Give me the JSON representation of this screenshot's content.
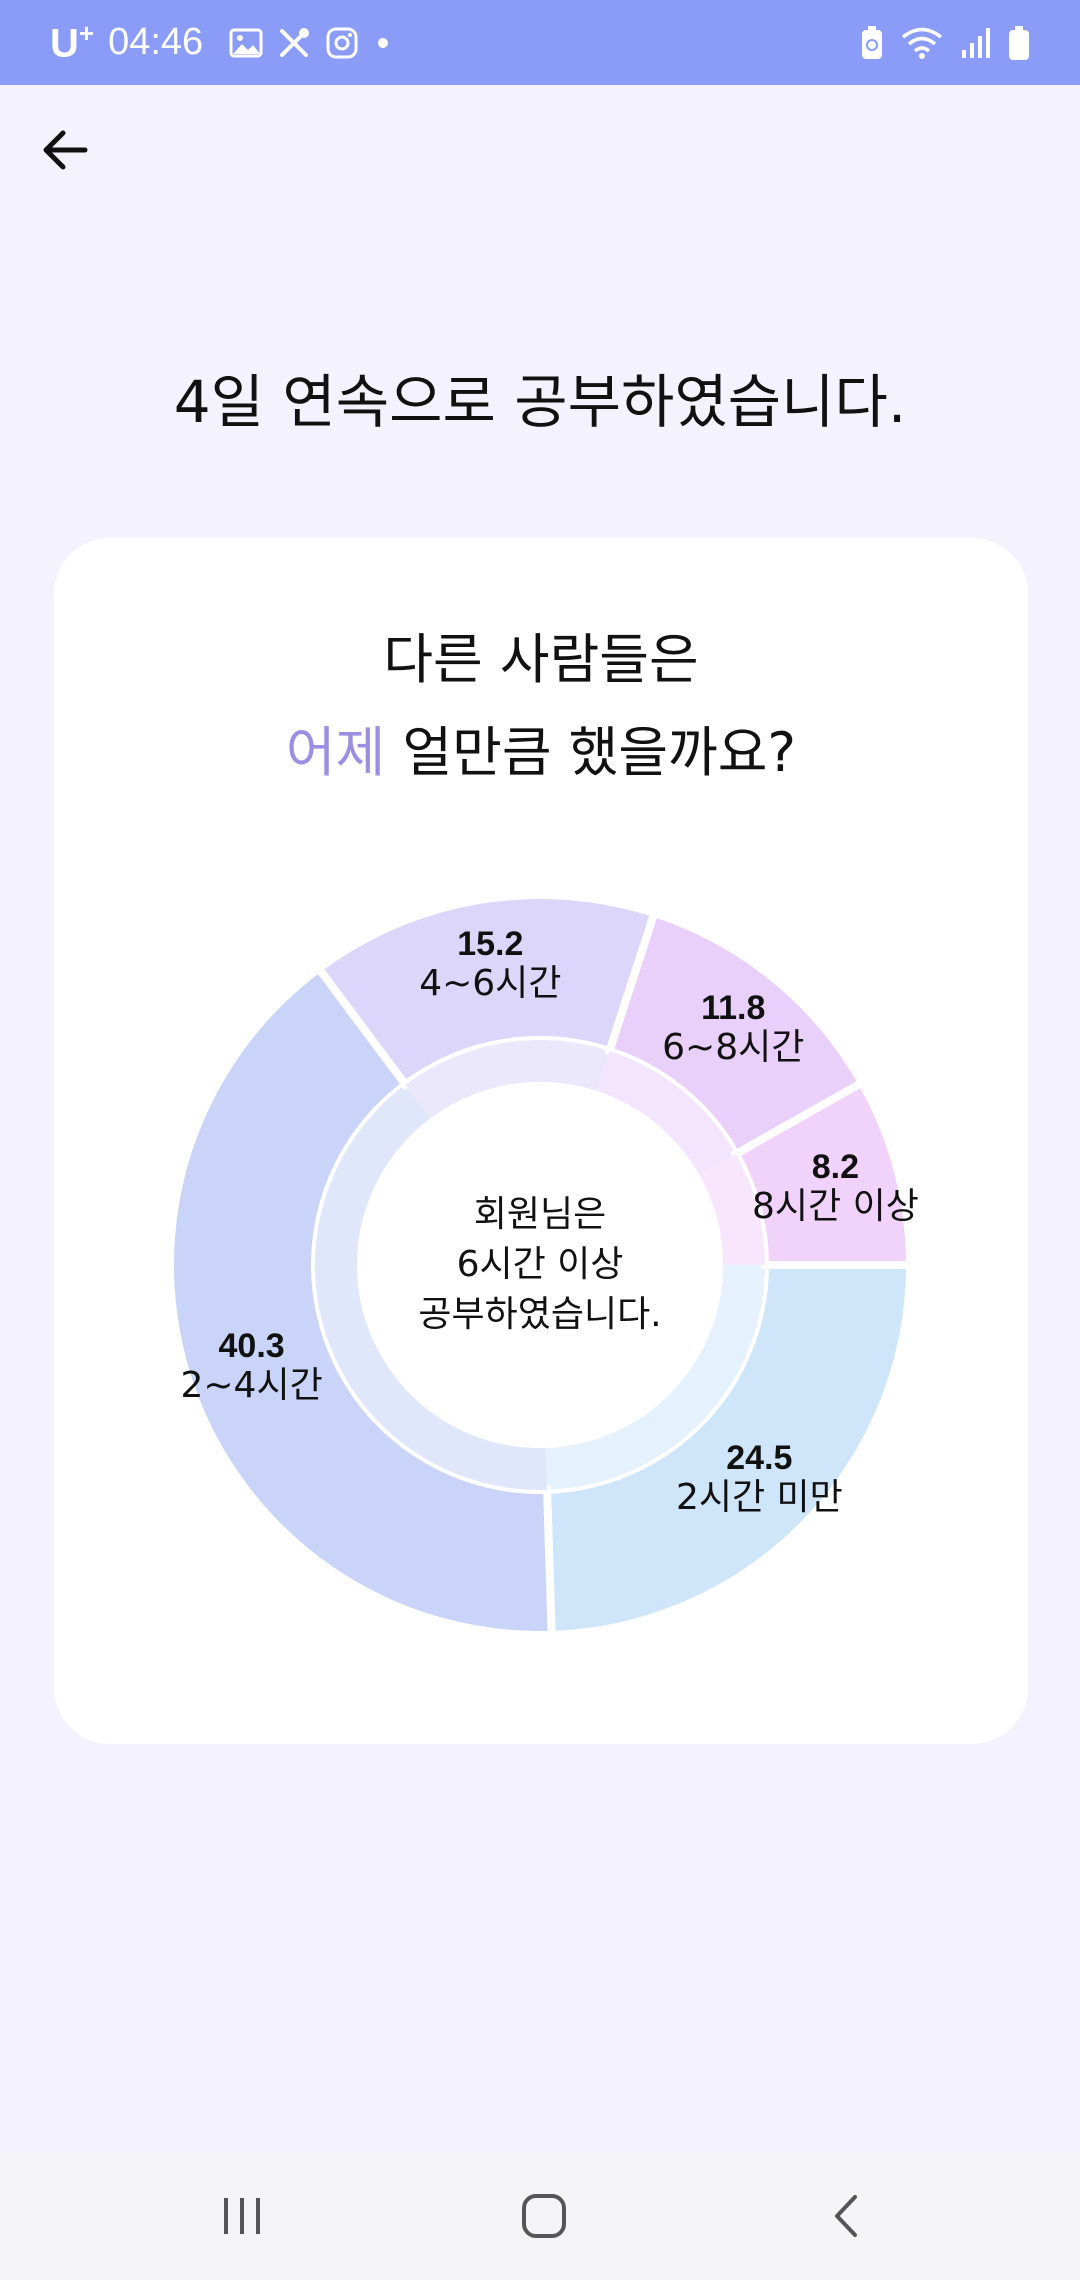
{
  "status_bar": {
    "carrier": "U",
    "carrier_plus": "+",
    "time": "04:46",
    "left_icons": [
      "gallery-icon",
      "tools-icon",
      "instagram-icon",
      "dot-icon"
    ],
    "right_icons": [
      "battery-saver-icon",
      "wifi-icon",
      "signal-icon",
      "battery-icon"
    ]
  },
  "header": {
    "back_icon": "arrow-left-icon"
  },
  "headline": "4일 연속으로 공부하였습니다.",
  "card": {
    "question_line1": "다른 사람들은",
    "question_accent": "어제",
    "question_rest": " 얼만큼 했을까요?",
    "accent_color": "#9B8FE4"
  },
  "chart_data": {
    "type": "pie",
    "donut": true,
    "categories": [
      "2시간 미만",
      "2~4시간",
      "4~6시간",
      "6~8시간",
      "8시간 이상"
    ],
    "values": [
      24.5,
      40.3,
      15.2,
      11.8,
      8.2
    ],
    "value_labels": [
      "24.5",
      "40.3",
      "15.2",
      "11.8",
      "8.2"
    ],
    "colors": [
      "#CFE5FA",
      "#C9D4F8",
      "#DCD6FA",
      "#E8D0FB",
      "#F1D2FA"
    ],
    "center_lines": [
      "회원님은",
      "6시간 이상",
      "공부하였습니다."
    ]
  },
  "nav_bar": {
    "recent_icon": "recent-apps-icon",
    "home_icon": "home-icon",
    "back_icon": "back-icon"
  }
}
